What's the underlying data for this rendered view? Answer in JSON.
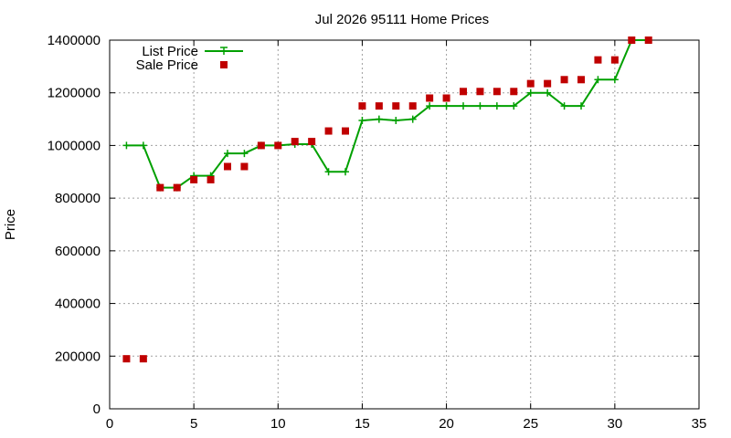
{
  "chart_data": {
    "type": "line",
    "title": "Jul 2026 95111 Home Prices",
    "xlabel": "",
    "ylabel": "Price",
    "xlim": [
      0,
      35
    ],
    "ylim": [
      0,
      1400000
    ],
    "xticks": [
      0,
      5,
      10,
      15,
      20,
      25,
      30,
      35
    ],
    "yticks": [
      0,
      200000,
      400000,
      600000,
      800000,
      1000000,
      1200000,
      1400000
    ],
    "grid": true,
    "legend_position": "top-left",
    "series": [
      {
        "name": "List Price",
        "style": "line-with-plus-markers",
        "color": "#00a000",
        "x": [
          1,
          2,
          3,
          4,
          5,
          6,
          7,
          8,
          9,
          10,
          11,
          12,
          13,
          14,
          15,
          16,
          17,
          18,
          19,
          20,
          21,
          22,
          23,
          24,
          25,
          26,
          27,
          28,
          29,
          30,
          31,
          32
        ],
        "values": [
          1000000,
          1000000,
          840000,
          840000,
          885000,
          885000,
          970000,
          970000,
          1000000,
          1000000,
          1005000,
          1005000,
          900000,
          900000,
          1095000,
          1100000,
          1095000,
          1100000,
          1150000,
          1150000,
          1150000,
          1150000,
          1150000,
          1150000,
          1200000,
          1200000,
          1150000,
          1150000,
          1250000,
          1250000,
          1400000,
          1400000
        ]
      },
      {
        "name": "Sale Price",
        "style": "square-markers",
        "color": "#c00000",
        "x": [
          1,
          2,
          3,
          4,
          5,
          6,
          7,
          8,
          9,
          10,
          11,
          12,
          13,
          14,
          15,
          16,
          17,
          18,
          19,
          20,
          21,
          22,
          23,
          24,
          25,
          26,
          27,
          28,
          29,
          30,
          31,
          32
        ],
        "values": [
          190000,
          190000,
          840000,
          840000,
          870000,
          870000,
          920000,
          920000,
          1000000,
          1000000,
          1015000,
          1015000,
          1055000,
          1055000,
          1150000,
          1150000,
          1150000,
          1150000,
          1180000,
          1180000,
          1205000,
          1205000,
          1205000,
          1205000,
          1235000,
          1235000,
          1250000,
          1250000,
          1325000,
          1325000,
          1400000,
          1400000
        ]
      }
    ]
  }
}
